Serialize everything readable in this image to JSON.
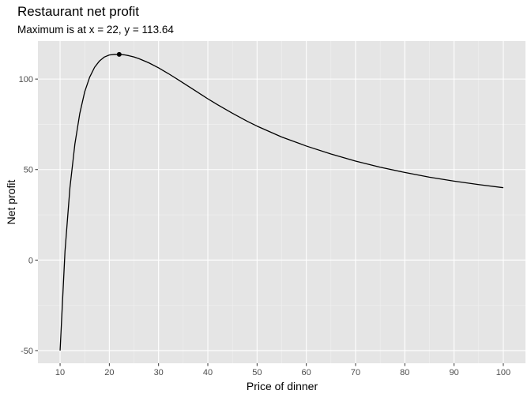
{
  "chart_data": {
    "type": "line",
    "title": "Restaurant net profit",
    "subtitle": "Maximum is at x = 22, y = 113.64",
    "xlabel": "Price of dinner",
    "ylabel": "Net profit",
    "xlim": [
      5.5,
      104.5
    ],
    "ylim": [
      -57,
      121
    ],
    "x_ticks": [
      10,
      20,
      30,
      40,
      50,
      60,
      70,
      80,
      90,
      100
    ],
    "y_ticks": [
      -50,
      0,
      50,
      100
    ],
    "grid": true,
    "legend": "none",
    "colors": {
      "panel_background": "#E5E5E5",
      "grid_major": "#FFFFFF",
      "grid_minor": "#F2F2F2",
      "line": "#000000",
      "point": "#000000",
      "tick_label": "#4D4D4D"
    },
    "series": [
      {
        "x": [
          10,
          11,
          12,
          13,
          14,
          15,
          16,
          17,
          18,
          19,
          20,
          21,
          22,
          23,
          24,
          25,
          26,
          28,
          30,
          32,
          34,
          36,
          38,
          40,
          42,
          45,
          48,
          50,
          55,
          60,
          65,
          70,
          75,
          80,
          85,
          90,
          95,
          100
        ],
        "values": [
          -50,
          5,
          40,
          64,
          81,
          93,
          101,
          106.5,
          110,
          112.2,
          113.3,
          113.62,
          113.64,
          113.4,
          112.9,
          112.2,
          111.3,
          109,
          106.2,
          103,
          99.6,
          96.1,
          92.6,
          89.1,
          85.8,
          81.1,
          76.7,
          74,
          68,
          63,
          58.6,
          54.7,
          51.3,
          48.4,
          45.8,
          43.6,
          41.7,
          40
        ]
      }
    ],
    "highlight_point": {
      "x": 22,
      "y": 113.64
    }
  }
}
